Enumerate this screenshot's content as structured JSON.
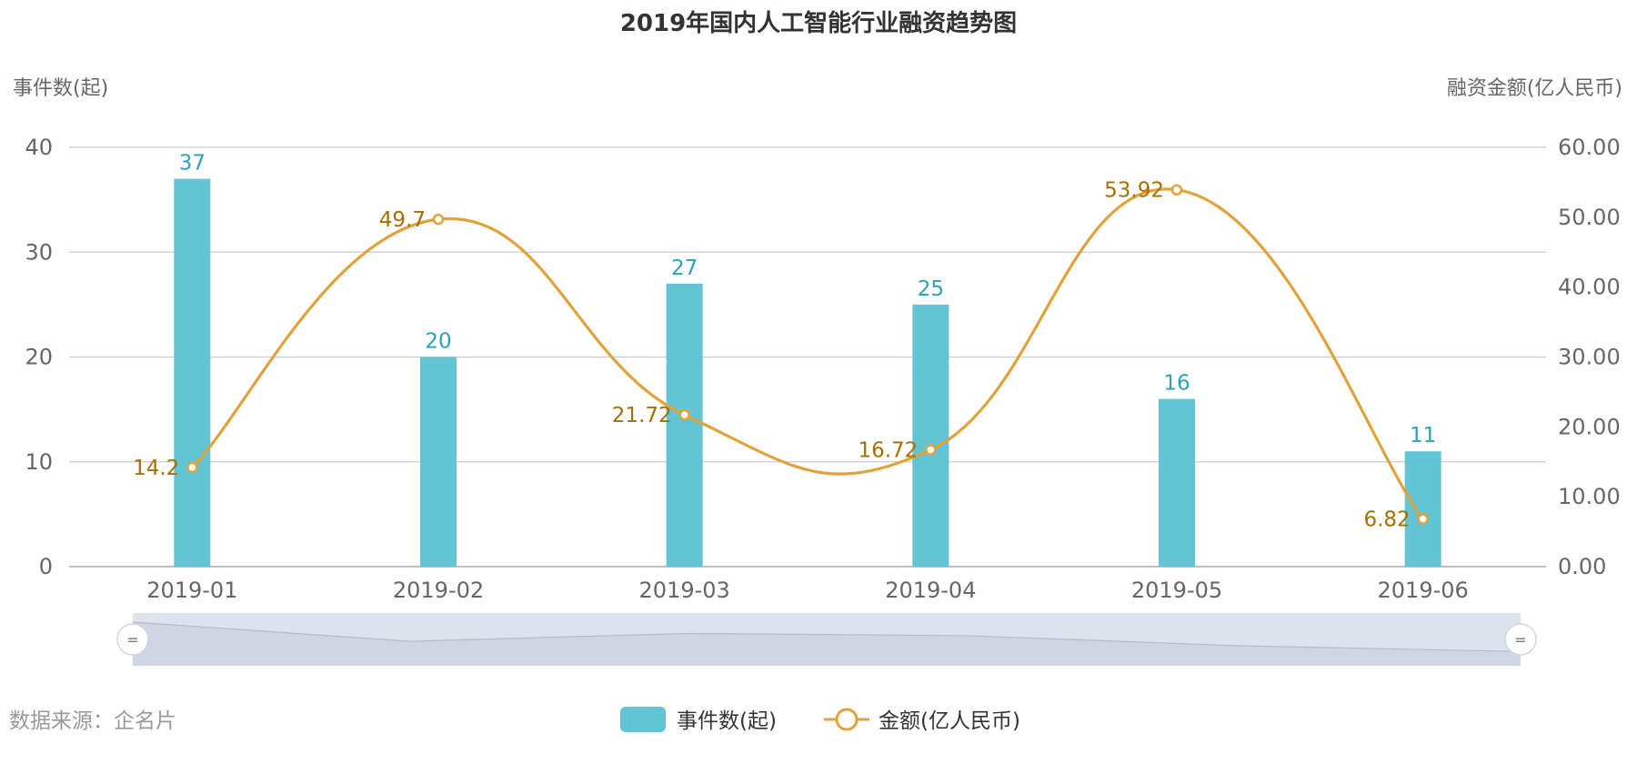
{
  "chart_data": {
    "type": "bar",
    "title": "2019年国内人工智能行业融资趋势图",
    "categories": [
      "2019-01",
      "2019-02",
      "2019-03",
      "2019-04",
      "2019-05",
      "2019-06"
    ],
    "y_left": {
      "name": "事件数(起)",
      "min": 0,
      "max": 40,
      "ticks": [
        "0",
        "10",
        "20",
        "30",
        "40"
      ]
    },
    "y_right": {
      "name": "融资金额(亿人民币)",
      "min": 0,
      "max": 60,
      "ticks": [
        "0.00",
        "10.00",
        "20.00",
        "30.00",
        "40.00",
        "50.00",
        "60.00"
      ]
    },
    "series": [
      {
        "name": "事件数(起)",
        "kind": "bar",
        "axis": "left",
        "color": "#62c4d5",
        "label_color": "#2aa3b8",
        "values": [
          37,
          20,
          27,
          25,
          16,
          11
        ]
      },
      {
        "name": "金额(亿人民币)",
        "kind": "line",
        "smooth": true,
        "axis": "right",
        "color": "#e0a33c",
        "label_color": "#a86e00",
        "values": [
          14.2,
          49.7,
          21.72,
          16.72,
          53.92,
          6.82
        ]
      }
    ],
    "grid": true,
    "legend": "bottom-center",
    "data_zoom": {
      "range": [
        "2019-01",
        "2019-06"
      ]
    },
    "source_note": "数据来源：企名片"
  }
}
